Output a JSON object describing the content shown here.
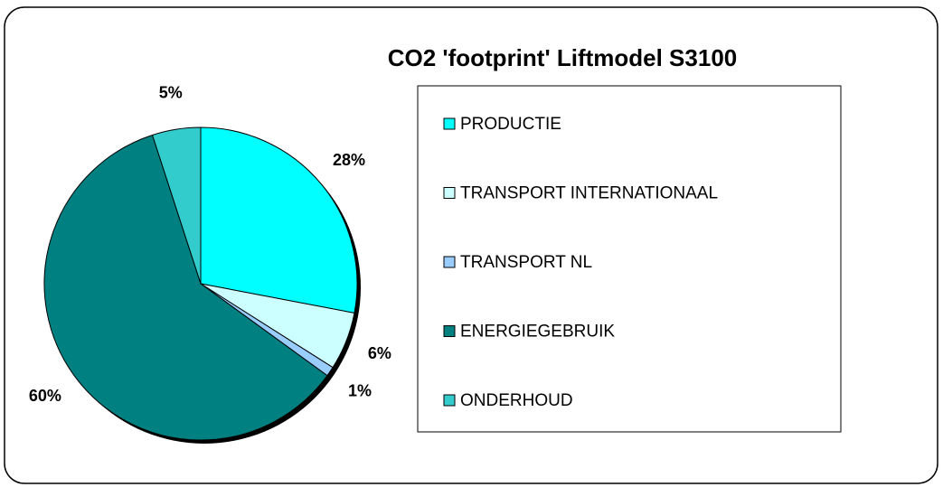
{
  "chart_data": {
    "type": "pie",
    "title": "CO2 'footprint' Liftmodel S3100",
    "categories": [
      "PRODUCTIE",
      "TRANSPORT INTERNATIONAAL",
      "TRANSPORT NL",
      "ENERGIEGEBRUIK",
      "ONDERHOUD"
    ],
    "values": [
      28,
      6,
      1,
      60,
      5
    ],
    "value_labels": [
      "28%",
      "6%",
      "1%",
      "60%",
      "5%"
    ],
    "colors": [
      "#00ffff",
      "#ccffff",
      "#99ccff",
      "#008080",
      "#33cccc"
    ],
    "legend": "right"
  }
}
